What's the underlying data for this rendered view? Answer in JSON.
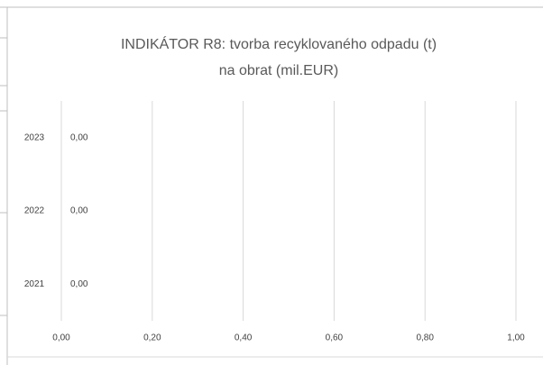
{
  "chart_data": {
    "type": "hbar",
    "title": [
      "INDIKÁTOR R8: tvorba recyklovaného odpadu (t)",
      "na obrat (mil.EUR)"
    ],
    "categories": [
      "2023",
      "2022",
      "2021"
    ],
    "values": [
      0,
      0,
      0
    ],
    "value_labels": [
      "0,00",
      "0,00",
      "0,00"
    ],
    "color": "#4472c4",
    "xlim": [
      0,
      1
    ],
    "xticks": [
      {
        "value": 0,
        "label": "0,00"
      },
      {
        "value": 0.2,
        "label": "0,20"
      },
      {
        "value": 0.4,
        "label": "0,40"
      },
      {
        "value": 0.6,
        "label": "0,60"
      },
      {
        "value": 0.8,
        "label": "0,80"
      },
      {
        "value": 1,
        "label": "1,00"
      }
    ],
    "grid": true
  }
}
